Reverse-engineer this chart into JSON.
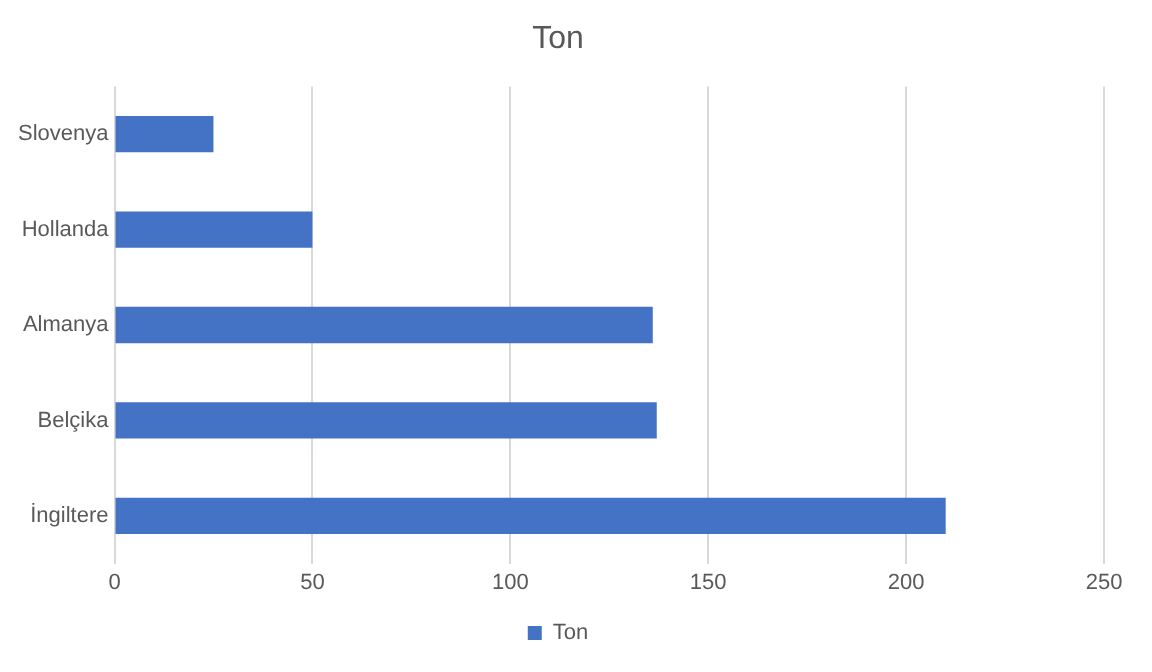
{
  "chart_data": {
    "type": "bar",
    "orientation": "horizontal",
    "title": "Ton",
    "categories": [
      "Slovenya",
      "Hollanda",
      "Almanya",
      "Belçika",
      "İngiltere"
    ],
    "series": [
      {
        "name": "Ton",
        "color": "#4472c4",
        "values": [
          25,
          50,
          136,
          137,
          210
        ]
      }
    ],
    "xlim": [
      0,
      250
    ],
    "xticks": [
      0,
      50,
      100,
      150,
      200,
      250
    ],
    "grid": "x",
    "legend": "bottom"
  }
}
